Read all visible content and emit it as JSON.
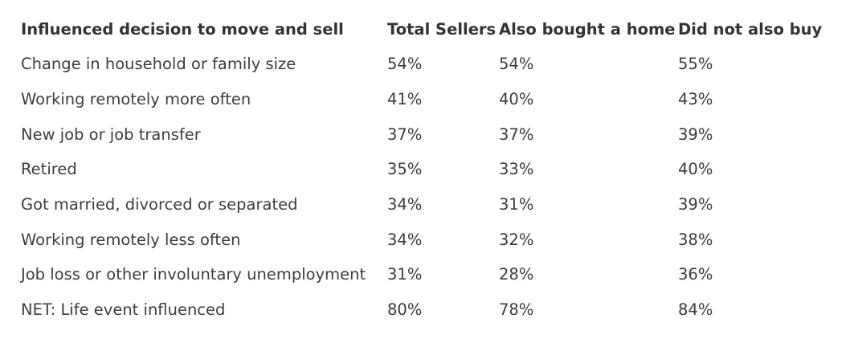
{
  "table": {
    "headers": [
      "Influenced decision to move and sell",
      "Total Sellers",
      "Also bought a home",
      "Did not also buy"
    ],
    "rows": [
      [
        "Change in household or family size",
        "54%",
        "54%",
        "55%"
      ],
      [
        "Working remotely more often",
        "41%",
        "40%",
        "43%"
      ],
      [
        "New job or job transfer",
        "37%",
        "37%",
        "39%"
      ],
      [
        "Retired",
        "35%",
        "33%",
        "40%"
      ],
      [
        "Got married, divorced or separated",
        "34%",
        "31%",
        "39%"
      ],
      [
        "Working remotely less often",
        "34%",
        "32%",
        "38%"
      ],
      [
        "Job loss or other involuntary unemployment",
        "31%",
        "28%",
        "36%"
      ],
      [
        "NET: Life event influenced",
        "80%",
        "78%",
        "84%"
      ]
    ]
  }
}
